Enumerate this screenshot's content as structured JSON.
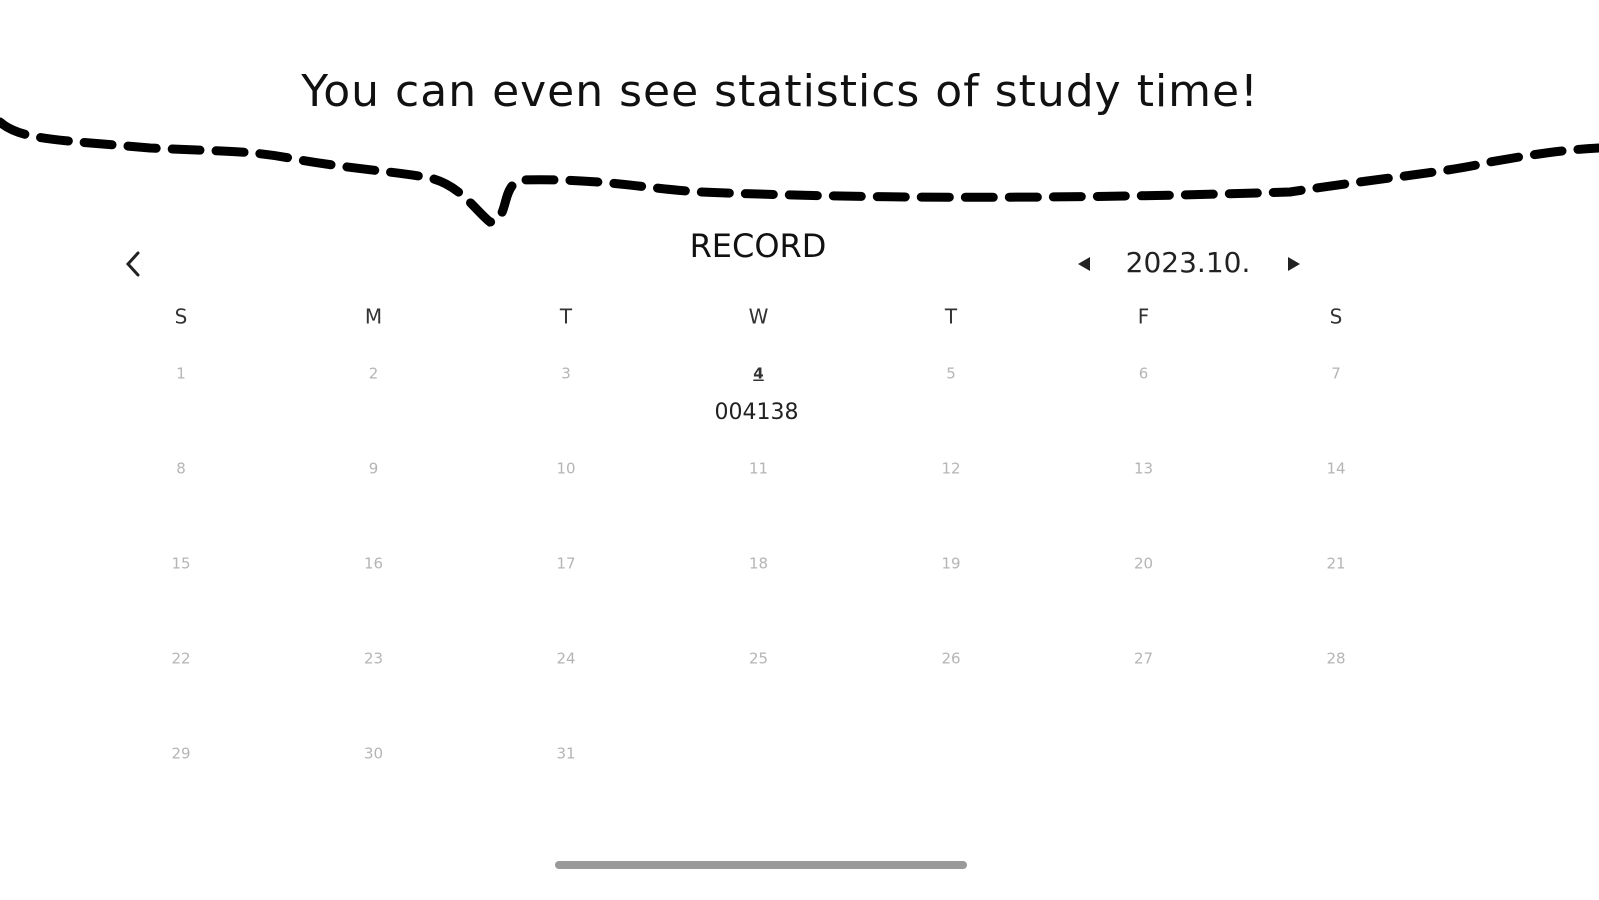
{
  "caption": "You can even see statistics of study time!",
  "header": {
    "title": "RECORD",
    "month": "2023.10."
  },
  "weekdays": [
    "S",
    "M",
    "T",
    "W",
    "T",
    "F",
    "S"
  ],
  "days": [
    {
      "day": 1
    },
    {
      "day": 2
    },
    {
      "day": 3
    },
    {
      "day": 4,
      "time": "004138"
    },
    {
      "day": 5
    },
    {
      "day": 6
    },
    {
      "day": 7
    },
    {
      "day": 8
    },
    {
      "day": 9
    },
    {
      "day": 10
    },
    {
      "day": 11
    },
    {
      "day": 12
    },
    {
      "day": 13
    },
    {
      "day": 14
    },
    {
      "day": 15
    },
    {
      "day": 16
    },
    {
      "day": 17
    },
    {
      "day": 18
    },
    {
      "day": 19
    },
    {
      "day": 20
    },
    {
      "day": 21
    },
    {
      "day": 22
    },
    {
      "day": 23
    },
    {
      "day": 24
    },
    {
      "day": 25
    },
    {
      "day": 26
    },
    {
      "day": 27
    },
    {
      "day": 28
    },
    {
      "day": 29
    },
    {
      "day": 30
    },
    {
      "day": 31
    }
  ]
}
